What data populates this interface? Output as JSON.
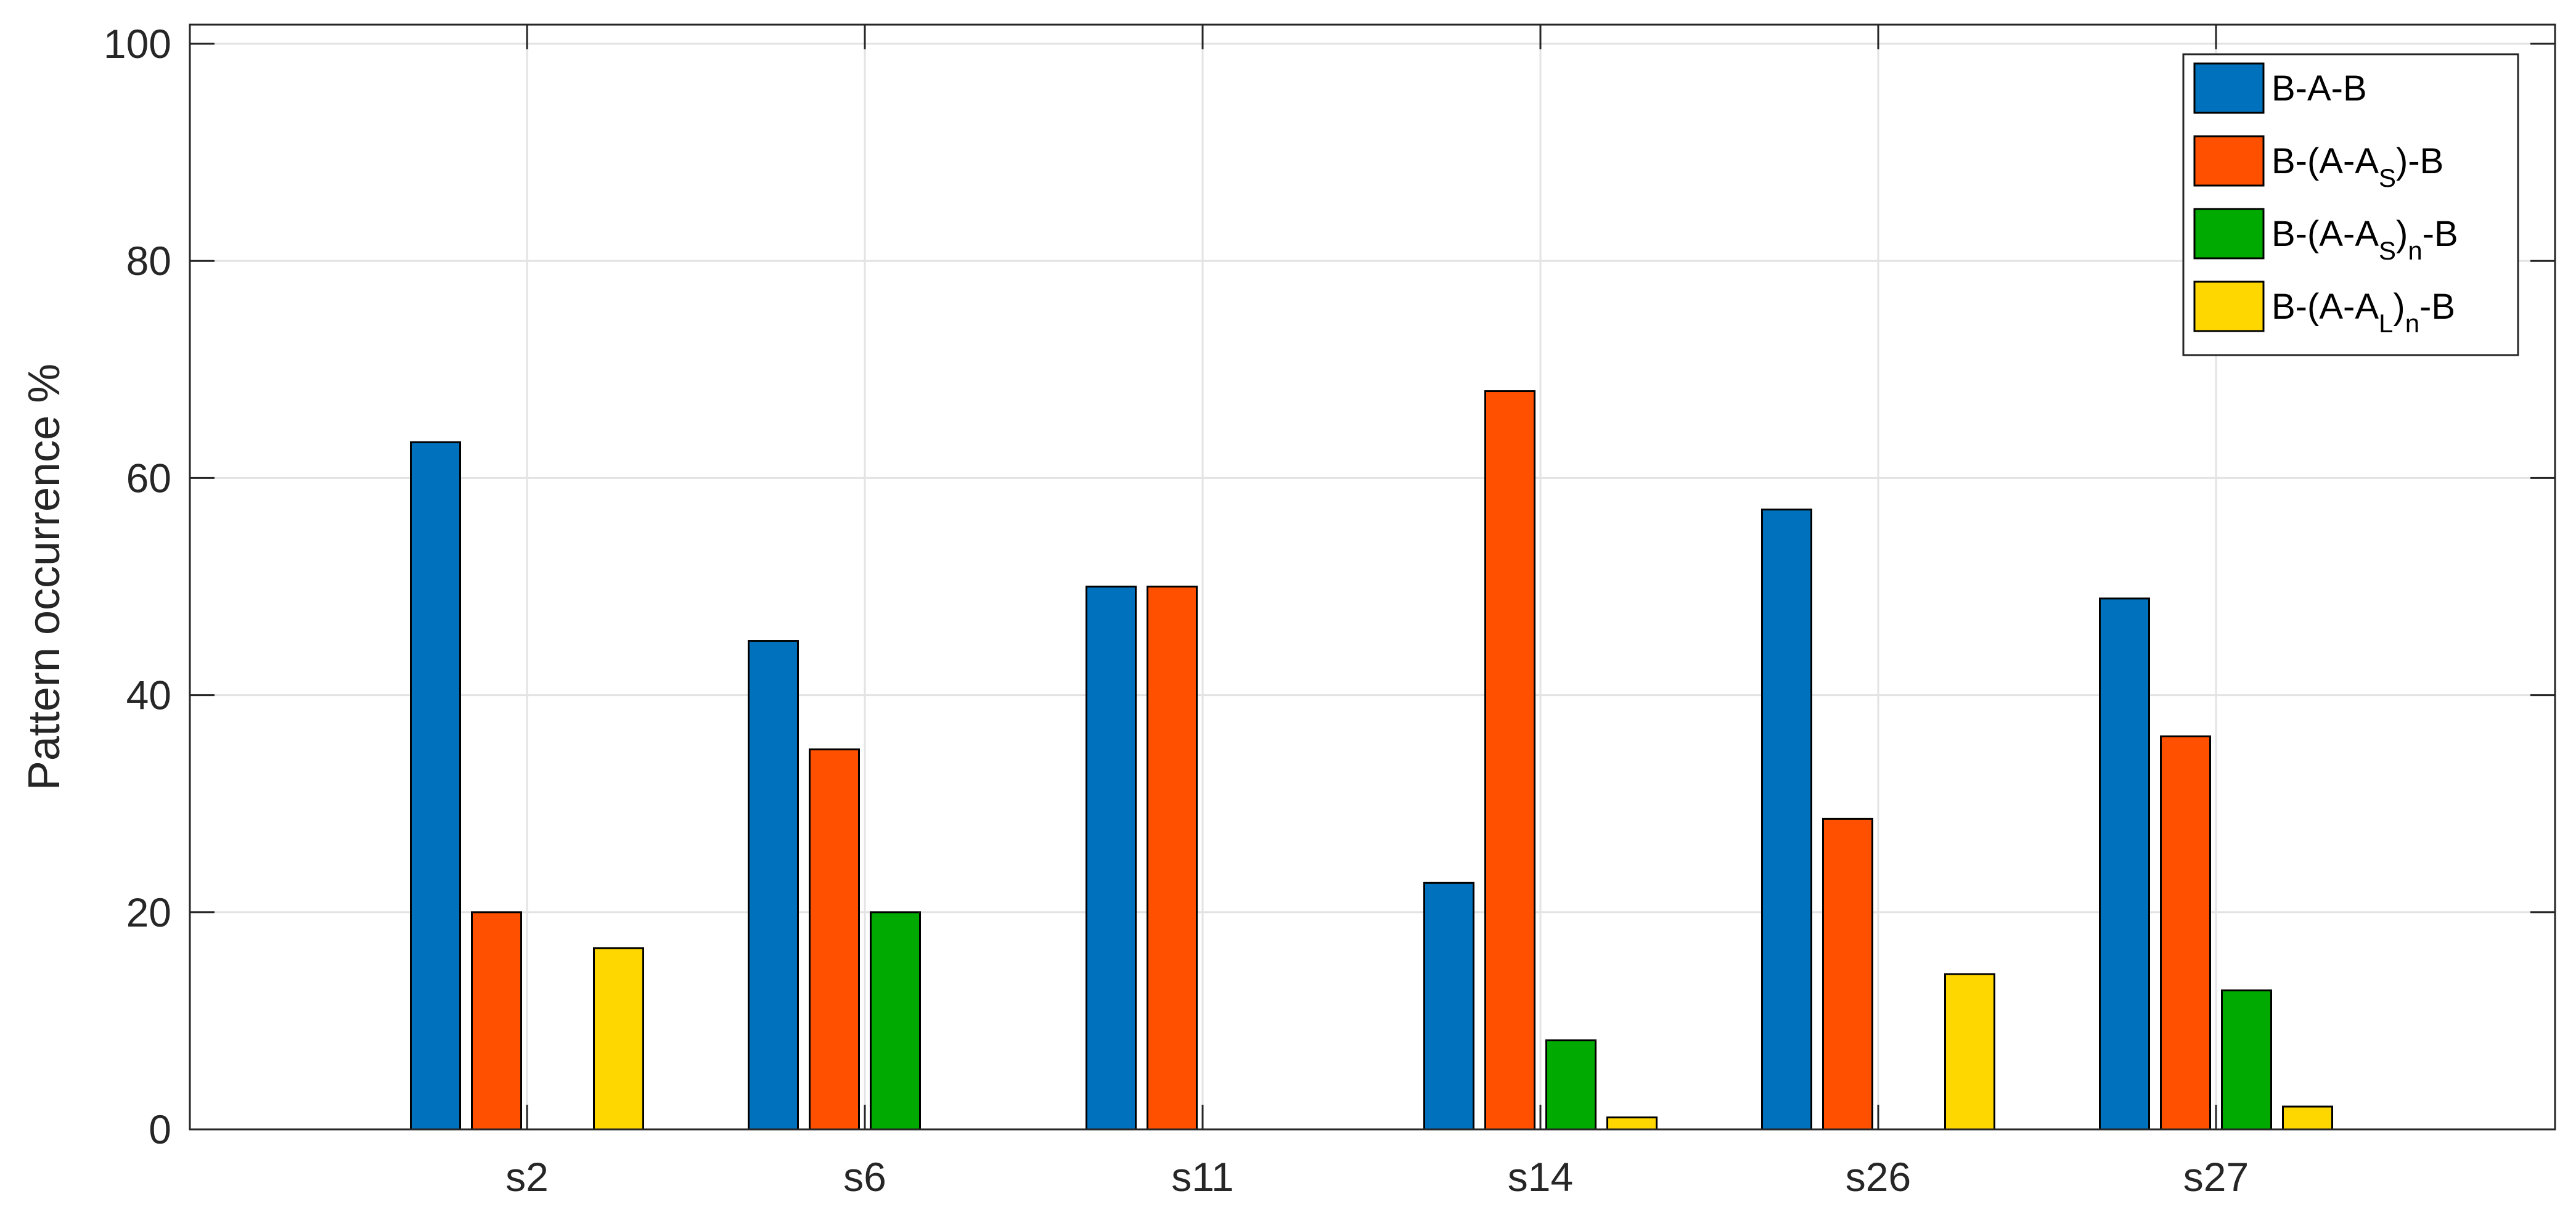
{
  "chart_data": {
    "type": "bar",
    "title": "",
    "xlabel": "",
    "ylabel": "Pattern occurrence %",
    "ylim": [
      0,
      100
    ],
    "yticks": [
      0,
      20,
      40,
      60,
      80,
      100
    ],
    "grid": true,
    "legend_position": "top-right",
    "categories": [
      "s2",
      "s6",
      "s11",
      "s14",
      "s26",
      "s27"
    ],
    "series": [
      {
        "name": "B-A-B",
        "color": "#0072BD",
        "values": [
          63.3,
          45.0,
          50.0,
          22.7,
          57.1,
          48.9
        ]
      },
      {
        "name": "B-(A-A_S)-B",
        "legend": {
          "pre": "B-(A-A",
          "sub": "S",
          "mid": "",
          "sub2": "",
          "post": ")-B"
        },
        "color": "#FF5000",
        "values": [
          20.0,
          35.0,
          50.0,
          68.0,
          28.6,
          36.2
        ]
      },
      {
        "name": "B-(A-A_S)_n-B",
        "legend": {
          "pre": "B-(A-A",
          "sub": "S",
          "mid": ")",
          "sub2": "n",
          "post": "-B"
        },
        "color": "#00AA00",
        "values": [
          0,
          20.0,
          0,
          8.2,
          0,
          12.8
        ]
      },
      {
        "name": "B-(A-A_L)_n-B",
        "legend": {
          "pre": "B-(A-A",
          "sub": "L",
          "mid": ")",
          "sub2": "n",
          "post": "-B"
        },
        "color": "#FFD700",
        "values": [
          16.7,
          0,
          0,
          1.1,
          14.3,
          2.1
        ]
      }
    ]
  }
}
